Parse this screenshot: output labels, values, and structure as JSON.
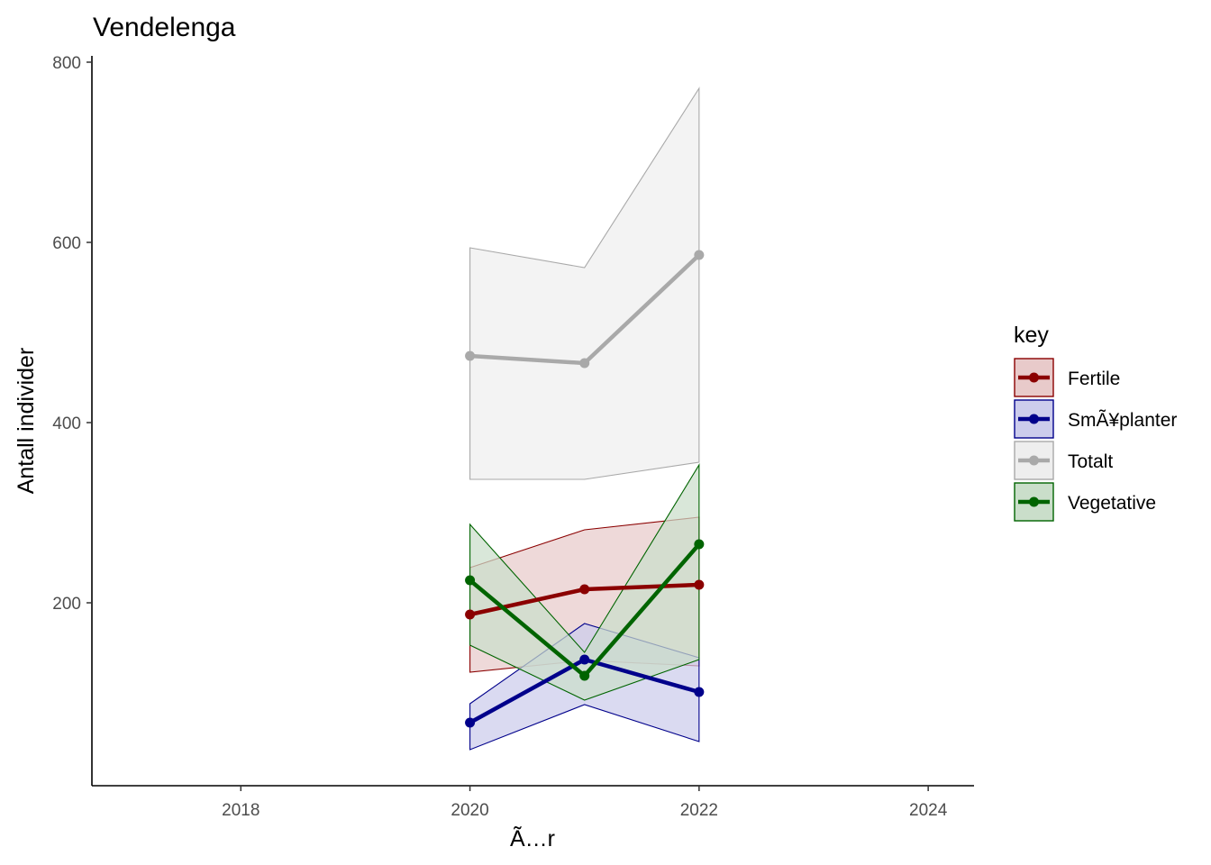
{
  "chart_data": {
    "type": "line",
    "title": "Vendelenga",
    "xlabel": "Ã…r",
    "ylabel": "Antall individer",
    "xlim": [
      2016.7,
      2024.4
    ],
    "ylim": [
      -3,
      807
    ],
    "x_ticks": [
      2018,
      2020,
      2022,
      2024
    ],
    "y_ticks": [
      200,
      400,
      600,
      800
    ],
    "grid": false,
    "legend": {
      "title": "key",
      "position": "right"
    },
    "x": [
      2020,
      2021,
      2022
    ],
    "series": [
      {
        "name": "Fertile",
        "color": "#8B0000",
        "fill": "#e8caca",
        "values": [
          187,
          215,
          220
        ],
        "lower": [
          123,
          136,
          130
        ],
        "upper": [
          239,
          281,
          295
        ]
      },
      {
        "name": "SmÃ¥planter",
        "color": "#00008B",
        "fill": "#ccccec",
        "values": [
          67,
          137,
          101
        ],
        "lower": [
          37,
          87,
          46
        ],
        "upper": [
          88,
          177,
          139
        ]
      },
      {
        "name": "Totalt",
        "color": "#A9A9A9",
        "fill": "#eeeeee",
        "values": [
          474,
          466,
          586
        ],
        "lower": [
          337,
          337,
          356
        ],
        "upper": [
          594,
          572,
          771
        ]
      },
      {
        "name": "Vegetative",
        "color": "#006400",
        "fill": "#cadeca",
        "values": [
          225,
          119,
          265
        ],
        "lower": [
          153,
          92,
          137
        ],
        "upper": [
          287,
          145,
          353
        ]
      }
    ]
  }
}
